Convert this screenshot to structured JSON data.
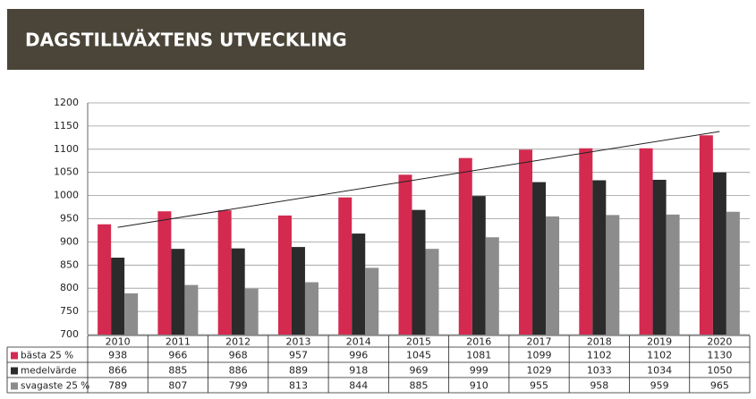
{
  "chart_data": {
    "type": "bar",
    "title": "DAGSTILLVÄXTENS UTVECKLING",
    "categories": [
      "2010",
      "2011",
      "2012",
      "2013",
      "2014",
      "2015",
      "2016",
      "2017",
      "2018",
      "2019",
      "2020"
    ],
    "series": [
      {
        "name": "bästa 25 %",
        "color": "#d42a50",
        "trendline": true,
        "values": [
          938,
          966,
          968,
          957,
          996,
          1045,
          1081,
          1099,
          1102,
          1102,
          1130
        ]
      },
      {
        "name": "medelvärde",
        "color": "#2b2b2b",
        "values": [
          866,
          885,
          886,
          889,
          918,
          969,
          999,
          1029,
          1033,
          1034,
          1050
        ]
      },
      {
        "name": "svagaste 25 %",
        "color": "#8c8c8c",
        "values": [
          789,
          807,
          799,
          813,
          844,
          885,
          910,
          955,
          958,
          959,
          965
        ]
      }
    ],
    "ylim": [
      700,
      1200
    ],
    "yticks": [
      700,
      750,
      800,
      850,
      900,
      950,
      1000,
      1050,
      1100,
      1150,
      1200
    ],
    "grid": true
  }
}
